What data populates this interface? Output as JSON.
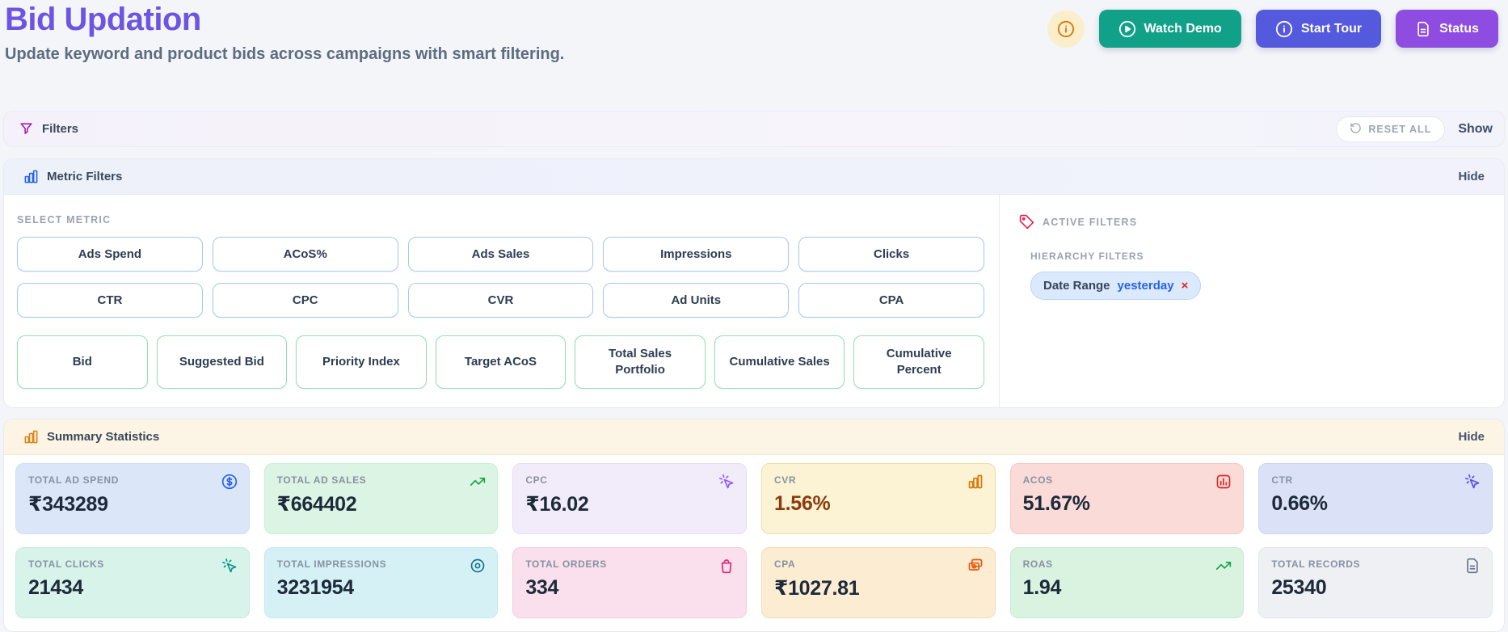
{
  "header": {
    "title": "Bid Updation",
    "subtitle": "Update keyword and product bids across campaigns with smart filtering.",
    "watch_demo_label": "Watch Demo",
    "start_tour_label": "Start Tour",
    "status_label": "Status"
  },
  "filters_bar": {
    "title": "Filters",
    "reset_all_label": "RESET ALL",
    "toggle_label": "Show"
  },
  "metric_filters": {
    "title": "Metric Filters",
    "toggle_label": "Hide",
    "select_metric_label": "SELECT METRIC",
    "metrics": {
      "blue": [
        "Ads Spend",
        "ACoS%",
        "Ads Sales",
        "Impressions",
        "Clicks",
        "CTR",
        "CPC",
        "CVR",
        "Ad Units",
        "CPA"
      ],
      "green": [
        "Bid",
        "Suggested Bid",
        "Priority Index",
        "Target ACoS",
        "Total Sales Portfolio",
        "Cumulative Sales",
        "Cumulative Percent"
      ]
    },
    "active_filters": {
      "title": "ACTIVE FILTERS",
      "group_label": "HIERARCHY FILTERS",
      "chip": {
        "label": "Date Range",
        "value": "yesterday",
        "remove_label": "×"
      }
    }
  },
  "summary": {
    "title": "Summary Statistics",
    "toggle_label": "Hide",
    "cards": [
      {
        "label": "TOTAL AD SPEND",
        "value": "₹343289",
        "icon": "dollar-circle-icon",
        "bg": "#dbe6f8",
        "border": "#cedff5",
        "icon_color": "#2563eb",
        "value_color": "#1c2a3a"
      },
      {
        "label": "TOTAL AD SALES",
        "value": "₹664402",
        "icon": "trending-up-icon",
        "bg": "#dcf4e4",
        "border": "#cbeed8",
        "icon_color": "#16a34a",
        "value_color": "#1c2a3a"
      },
      {
        "label": "CPC",
        "value": "₹16.02",
        "icon": "cursor-click-icon",
        "bg": "#f2ecfa",
        "border": "#e8ddf6",
        "icon_color": "#8b5cf6",
        "value_color": "#1c2a3a"
      },
      {
        "label": "CVR",
        "value": "1.56%",
        "icon": "bars-icon",
        "bg": "#fcf3d4",
        "border": "#efdda6",
        "icon_color": "#d97706",
        "value_color": "#8a3c10"
      },
      {
        "label": "ACOS",
        "value": "51.67%",
        "icon": "bar-chart-square-icon",
        "bg": "#fadbd7",
        "border": "#f4c9c3",
        "icon_color": "#dc2626",
        "value_color": "#1c2a3a"
      },
      {
        "label": "CTR",
        "value": "0.66%",
        "icon": "cursor-click-icon",
        "bg": "#dbe2f8",
        "border": "#ccd6f3",
        "icon_color": "#5b4be8",
        "value_color": "#1c2a3a"
      },
      {
        "label": "TOTAL CLICKS",
        "value": "21434",
        "icon": "cursor-click-icon",
        "bg": "#d8f4ea",
        "border": "#c4ecdd",
        "icon_color": "#0d9488",
        "value_color": "#1c2a3a"
      },
      {
        "label": "TOTAL IMPRESSIONS",
        "value": "3231954",
        "icon": "circle-dot-icon",
        "bg": "#d6f1f6",
        "border": "#c2e8ef",
        "icon_color": "#0e7490",
        "value_color": "#1c2a3a"
      },
      {
        "label": "TOTAL ORDERS",
        "value": "334",
        "icon": "shopping-bag-icon",
        "bg": "#fadfec",
        "border": "#f4cde0",
        "icon_color": "#db2777",
        "value_color": "#1c2a3a"
      },
      {
        "label": "CPA",
        "value": "₹1027.81",
        "icon": "banknote-icon",
        "bg": "#fcecd2",
        "border": "#f2dcb5",
        "icon_color": "#ea580c",
        "value_color": "#1c2a3a"
      },
      {
        "label": "ROAS",
        "value": "1.94",
        "icon": "trending-up-icon",
        "bg": "#d9f3e0",
        "border": "#c7ead2",
        "icon_color": "#16a34a",
        "value_color": "#1c2a3a"
      },
      {
        "label": "TOTAL RECORDS",
        "value": "25340",
        "icon": "file-text-icon",
        "bg": "#eef0f4",
        "border": "#e2e6ec",
        "icon_color": "#64748b",
        "value_color": "#1c2a3a"
      }
    ]
  },
  "colors": {
    "title": "#6d55e2",
    "watch_demo_bg": "#11a189",
    "start_tour_bg": "#5559dd",
    "status_bg": "#8e4ce0",
    "chip_value": "#2563eb"
  }
}
